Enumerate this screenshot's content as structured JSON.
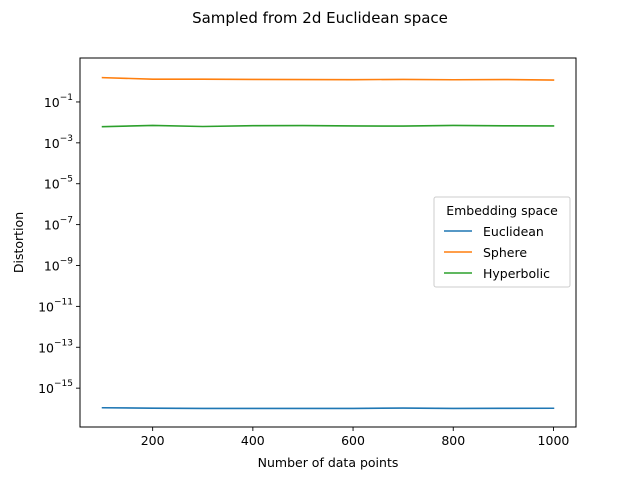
{
  "chart_data": {
    "type": "line",
    "title": "Sampled from 2d Euclidean space",
    "xlabel": "Number of data points",
    "ylabel": "Distortion",
    "yscale": "log",
    "xlim": [
      55,
      1045
    ],
    "ylim_log10": [
      -16.9,
      1.15
    ],
    "x_ticks": [
      200,
      400,
      600,
      800,
      1000
    ],
    "y_ticks_exp": [
      -15,
      -13,
      -11,
      -9,
      -7,
      -5,
      -3,
      -1
    ],
    "grid": false,
    "legend": {
      "title": "Embedding space",
      "placement": "center-right"
    },
    "x": [
      100,
      200,
      300,
      400,
      500,
      600,
      700,
      800,
      900,
      1000
    ],
    "series": [
      {
        "name": "Euclidean",
        "color": "#1f77b4",
        "values": [
          1.1e-16,
          1.05e-16,
          1.02e-16,
          1.02e-16,
          1.02e-16,
          1.02e-16,
          1.06e-16,
          1.02e-16,
          1.03e-16,
          1.04e-16
        ]
      },
      {
        "name": "Sphere",
        "color": "#ff7f0e",
        "values": [
          1.55,
          1.3,
          1.3,
          1.27,
          1.25,
          1.23,
          1.27,
          1.22,
          1.25,
          1.18
        ]
      },
      {
        "name": "Hyperbolic",
        "color": "#2ca02c",
        "values": [
          0.0062,
          0.0071,
          0.0063,
          0.0069,
          0.007,
          0.0067,
          0.0066,
          0.0071,
          0.0068,
          0.0067
        ]
      }
    ]
  }
}
